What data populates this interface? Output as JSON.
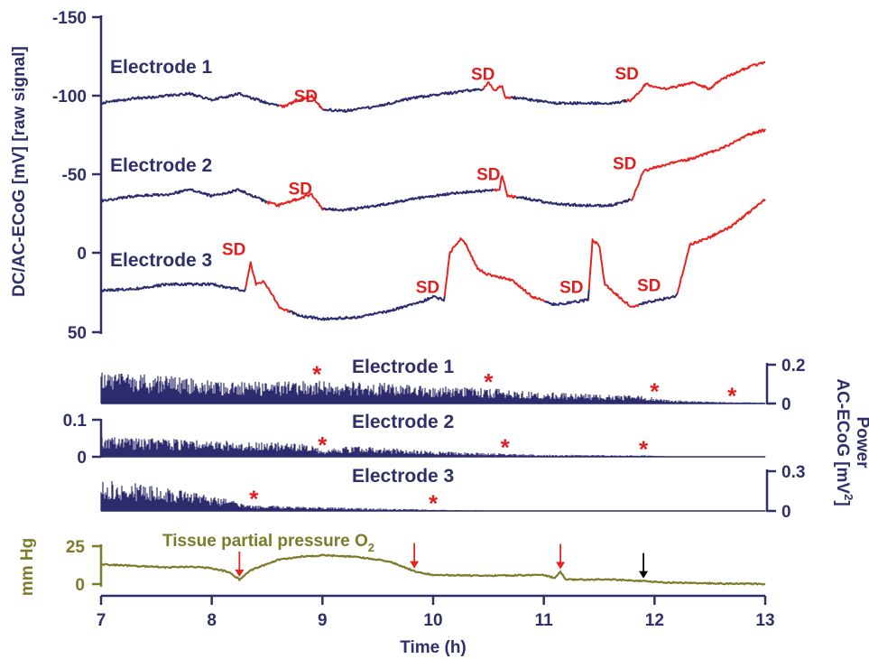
{
  "colors": {
    "axis": "#2f2f6b",
    "trace": "#2b2b6e",
    "sd_highlight": "#e8231f",
    "oxygen": "#7d7a2a",
    "arrow_red": "#e8231f",
    "arrow_black": "#000000"
  },
  "chart_data": [
    {
      "type": "line",
      "ylabel": "DC/AC-ECoG [mV] [raw signal]",
      "y_reversed": true,
      "yticks": [
        "-150",
        "-100",
        "-50",
        "0",
        "50"
      ],
      "ylim": [
        50,
        -150
      ],
      "xlim": [
        7,
        13
      ],
      "sd_label": "SD",
      "series": [
        {
          "name": "Electrode 1",
          "points": [
            [
              7.0,
              -95
            ],
            [
              7.3,
              -98
            ],
            [
              7.5,
              -99
            ],
            [
              7.8,
              -101
            ],
            [
              8.0,
              -97
            ],
            [
              8.25,
              -101
            ],
            [
              8.5,
              -95
            ],
            [
              8.65,
              -93
            ],
            [
              8.9,
              -100
            ],
            [
              9.0,
              -91
            ],
            [
              9.2,
              -90
            ],
            [
              9.5,
              -93
            ],
            [
              9.8,
              -98
            ],
            [
              10.1,
              -101
            ],
            [
              10.45,
              -104
            ],
            [
              10.5,
              -108
            ],
            [
              10.55,
              -103
            ],
            [
              10.62,
              -106
            ],
            [
              10.65,
              -99
            ],
            [
              10.8,
              -98
            ],
            [
              11.1,
              -95
            ],
            [
              11.4,
              -95
            ],
            [
              11.6,
              -95
            ],
            [
              11.8,
              -97
            ],
            [
              11.92,
              -107
            ],
            [
              12.1,
              -104
            ],
            [
              12.35,
              -108
            ],
            [
              12.5,
              -104
            ],
            [
              12.6,
              -110
            ],
            [
              12.85,
              -118
            ],
            [
              13.0,
              -121
            ]
          ],
          "sd_segments": [
            [
              8.6,
              9.0
            ],
            [
              10.45,
              10.7
            ],
            [
              11.75,
              13.0
            ]
          ],
          "sd_label_x": [
            8.85,
            10.45,
            11.75
          ]
        },
        {
          "name": "Electrode 2",
          "points": [
            [
              7.0,
              -33
            ],
            [
              7.3,
              -36
            ],
            [
              7.6,
              -37
            ],
            [
              7.8,
              -40
            ],
            [
              8.0,
              -36
            ],
            [
              8.25,
              -40
            ],
            [
              8.5,
              -32
            ],
            [
              8.6,
              -30
            ],
            [
              8.9,
              -37
            ],
            [
              9.0,
              -28
            ],
            [
              9.2,
              -27
            ],
            [
              9.5,
              -30
            ],
            [
              9.8,
              -34
            ],
            [
              10.2,
              -38
            ],
            [
              10.6,
              -40
            ],
            [
              10.62,
              -50
            ],
            [
              10.67,
              -36
            ],
            [
              10.8,
              -35
            ],
            [
              11.1,
              -31
            ],
            [
              11.4,
              -30
            ],
            [
              11.6,
              -30
            ],
            [
              11.8,
              -34
            ],
            [
              11.9,
              -52
            ],
            [
              12.1,
              -56
            ],
            [
              12.35,
              -60
            ],
            [
              12.6,
              -66
            ],
            [
              12.85,
              -75
            ],
            [
              13.0,
              -78
            ]
          ],
          "sd_segments": [
            [
              8.5,
              9.0
            ],
            [
              10.55,
              10.75
            ],
            [
              11.78,
              13.0
            ]
          ],
          "sd_label_x": [
            8.8,
            10.5,
            11.73
          ]
        },
        {
          "name": "Electrode 3",
          "points": [
            [
              7.0,
              24
            ],
            [
              7.3,
              23
            ],
            [
              7.6,
              20
            ],
            [
              8.0,
              20
            ],
            [
              8.3,
              24
            ],
            [
              8.35,
              6
            ],
            [
              8.4,
              20
            ],
            [
              8.47,
              18
            ],
            [
              8.62,
              35
            ],
            [
              8.8,
              40
            ],
            [
              9.0,
              42
            ],
            [
              9.3,
              41
            ],
            [
              9.6,
              37
            ],
            [
              9.9,
              31
            ],
            [
              10.0,
              28
            ],
            [
              10.1,
              30
            ],
            [
              10.15,
              0
            ],
            [
              10.25,
              -9
            ],
            [
              10.3,
              -5
            ],
            [
              10.4,
              10
            ],
            [
              10.5,
              14
            ],
            [
              10.7,
              17
            ],
            [
              10.9,
              28
            ],
            [
              11.1,
              33
            ],
            [
              11.4,
              30
            ],
            [
              11.44,
              -8
            ],
            [
              11.5,
              -5
            ],
            [
              11.55,
              20
            ],
            [
              11.8,
              35
            ],
            [
              11.9,
              32
            ],
            [
              12.1,
              29
            ],
            [
              12.2,
              27
            ],
            [
              12.32,
              -5
            ],
            [
              12.5,
              -10
            ],
            [
              12.7,
              -17
            ],
            [
              13.0,
              -34
            ]
          ],
          "sd_segments": [
            [
              8.3,
              8.7
            ],
            [
              10.1,
              11.0
            ],
            [
              11.4,
              11.85
            ],
            [
              12.2,
              13.0
            ]
          ],
          "sd_label_x": [
            8.2,
            9.95,
            11.25,
            11.95
          ]
        }
      ]
    },
    {
      "type": "area",
      "right_ylabel": "Power AC-ECoG [mV²]",
      "right_ylabel_line1": "Power",
      "right_ylabel_line2": "AC-ECoG [mV",
      "right_ylabel_sup": "2",
      "right_ylabel_close": "]",
      "star": "*",
      "panels": [
        {
          "name": "Electrode 1",
          "yticks": [
            "0.2",
            "0"
          ],
          "ylim": [
            0,
            0.25
          ],
          "axis_side": "right",
          "envelope": [
            [
              7.0,
              0.16
            ],
            [
              7.5,
              0.15
            ],
            [
              8.0,
              0.12
            ],
            [
              8.5,
              0.11
            ],
            [
              9.0,
              0.12
            ],
            [
              9.5,
              0.11
            ],
            [
              10.0,
              0.09
            ],
            [
              10.5,
              0.08
            ],
            [
              11.0,
              0.06
            ],
            [
              11.5,
              0.05
            ],
            [
              11.9,
              0.04
            ],
            [
              12.1,
              0.02
            ],
            [
              12.5,
              0.01
            ],
            [
              13.0,
              0.005
            ]
          ],
          "stars_x": [
            8.95,
            10.5,
            12.0,
            12.7
          ]
        },
        {
          "name": "Electrode 2",
          "yticks": [
            "0.1",
            "0"
          ],
          "ylim": [
            0,
            0.1
          ],
          "axis_side": "left",
          "envelope": [
            [
              7.0,
              0.055
            ],
            [
              7.5,
              0.05
            ],
            [
              8.0,
              0.045
            ],
            [
              8.5,
              0.04
            ],
            [
              8.9,
              0.035
            ],
            [
              9.0,
              0.015
            ],
            [
              9.2,
              0.03
            ],
            [
              9.6,
              0.025
            ],
            [
              10.0,
              0.015
            ],
            [
              10.5,
              0.01
            ],
            [
              11.0,
              0.006
            ],
            [
              11.5,
              0.005
            ],
            [
              11.9,
              0.004
            ],
            [
              12.2,
              0.001
            ],
            [
              13.0,
              0.0
            ]
          ],
          "stars_x": [
            9.0,
            10.65,
            11.9
          ]
        },
        {
          "name": "Electrode 3",
          "yticks": [
            "0.3",
            "0"
          ],
          "ylim": [
            0,
            0.35
          ],
          "axis_side": "right",
          "envelope": [
            [
              7.0,
              0.25
            ],
            [
              7.4,
              0.2
            ],
            [
              7.8,
              0.15
            ],
            [
              8.2,
              0.08
            ],
            [
              8.4,
              0.04
            ],
            [
              8.6,
              0.04
            ],
            [
              9.0,
              0.03
            ],
            [
              9.5,
              0.02
            ],
            [
              9.8,
              0.015
            ],
            [
              10.0,
              0.01
            ],
            [
              10.5,
              0.004
            ],
            [
              13.0,
              0.001
            ]
          ],
          "stars_x": [
            8.38,
            10.0
          ]
        }
      ]
    },
    {
      "type": "line",
      "title": "Tissue partial pressure O",
      "title_sub": "2",
      "ylabel": "mm Hg",
      "yticks": [
        "25",
        "0"
      ],
      "ylim": [
        0,
        25
      ],
      "xlabel": "Time (h)",
      "xticks": [
        "7",
        "8",
        "9",
        "10",
        "11",
        "12",
        "13"
      ],
      "xlim": [
        7,
        13
      ],
      "points": [
        [
          7.0,
          13
        ],
        [
          7.3,
          12
        ],
        [
          7.6,
          11
        ],
        [
          7.8,
          11.5
        ],
        [
          8.0,
          10.5
        ],
        [
          8.15,
          8
        ],
        [
          8.25,
          3
        ],
        [
          8.35,
          9
        ],
        [
          8.6,
          16
        ],
        [
          8.8,
          18
        ],
        [
          9.0,
          19
        ],
        [
          9.3,
          18
        ],
        [
          9.6,
          15
        ],
        [
          9.85,
          8
        ],
        [
          10.0,
          6
        ],
        [
          10.5,
          5.5
        ],
        [
          11.0,
          6
        ],
        [
          11.1,
          4
        ],
        [
          11.15,
          8
        ],
        [
          11.2,
          3
        ],
        [
          11.6,
          3
        ],
        [
          11.9,
          2
        ],
        [
          12.1,
          1
        ],
        [
          12.5,
          0.5
        ],
        [
          13.0,
          0
        ]
      ],
      "red_arrows_x": [
        8.25,
        9.83,
        11.15
      ],
      "black_arrows_x": [
        11.9
      ]
    }
  ]
}
